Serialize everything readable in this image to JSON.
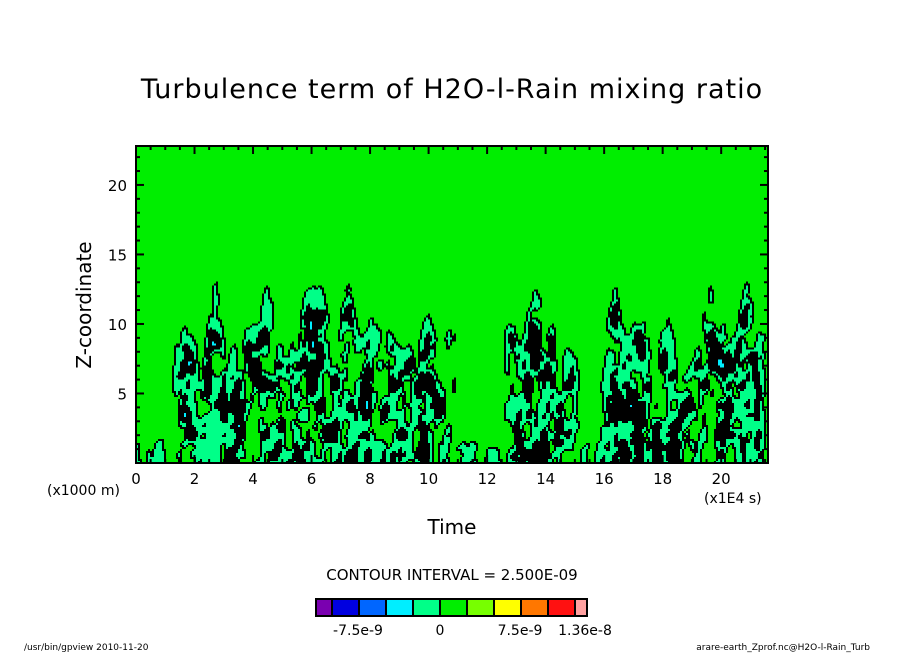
{
  "chart_data": {
    "type": "heatmap",
    "subtype": "filled-contour",
    "title": "Turbulence term of H2O-l-Rain mixing ratio",
    "xlabel": "Time",
    "ylabel": "Z-coordinate",
    "x_unit_label": "(x1E4 s)",
    "y_unit_label": "(x1000 m)",
    "xlim": [
      0,
      21.6
    ],
    "ylim": [
      0,
      22.8
    ],
    "x_ticks": [
      0,
      2,
      4,
      6,
      8,
      10,
      12,
      14,
      16,
      18,
      20
    ],
    "x_tick_labels": [
      "0",
      "2",
      "4",
      "6",
      "8",
      "10",
      "12",
      "14",
      "16",
      "18",
      "20"
    ],
    "y_ticks": [
      5,
      10,
      15,
      20
    ],
    "y_tick_labels": [
      "5",
      "10",
      "15",
      "20"
    ],
    "contour_interval_text": "CONTOUR INTERVAL = 2.500E-09",
    "contour_interval": 2.5e-09,
    "colorbar": {
      "colors": [
        "#7a00b0",
        "#0000e0",
        "#0066ff",
        "#00eeff",
        "#00ff88",
        "#00ee00",
        "#77ff00",
        "#ffff00",
        "#ff7700",
        "#ff1111",
        "#ffa0a0"
      ],
      "labels": [
        "-7.5e-9",
        "0",
        "7.5e-9",
        "1.36e-8"
      ],
      "label_values": [
        -7.5e-09,
        0,
        7.5e-09,
        1.36e-08
      ]
    },
    "field_description_regions": {
      "active_x_ranges": [
        [
          1.2,
          11.0
        ],
        [
          12.6,
          15.2
        ],
        [
          15.9,
          21.6
        ]
      ],
      "active_z_top_approx": 12,
      "background_level": 0
    }
  },
  "footer": {
    "left": "/usr/bin/gpview  2010-11-20",
    "right": "arare-earth_Zprof.nc@H2O-l-Rain_Turb"
  }
}
